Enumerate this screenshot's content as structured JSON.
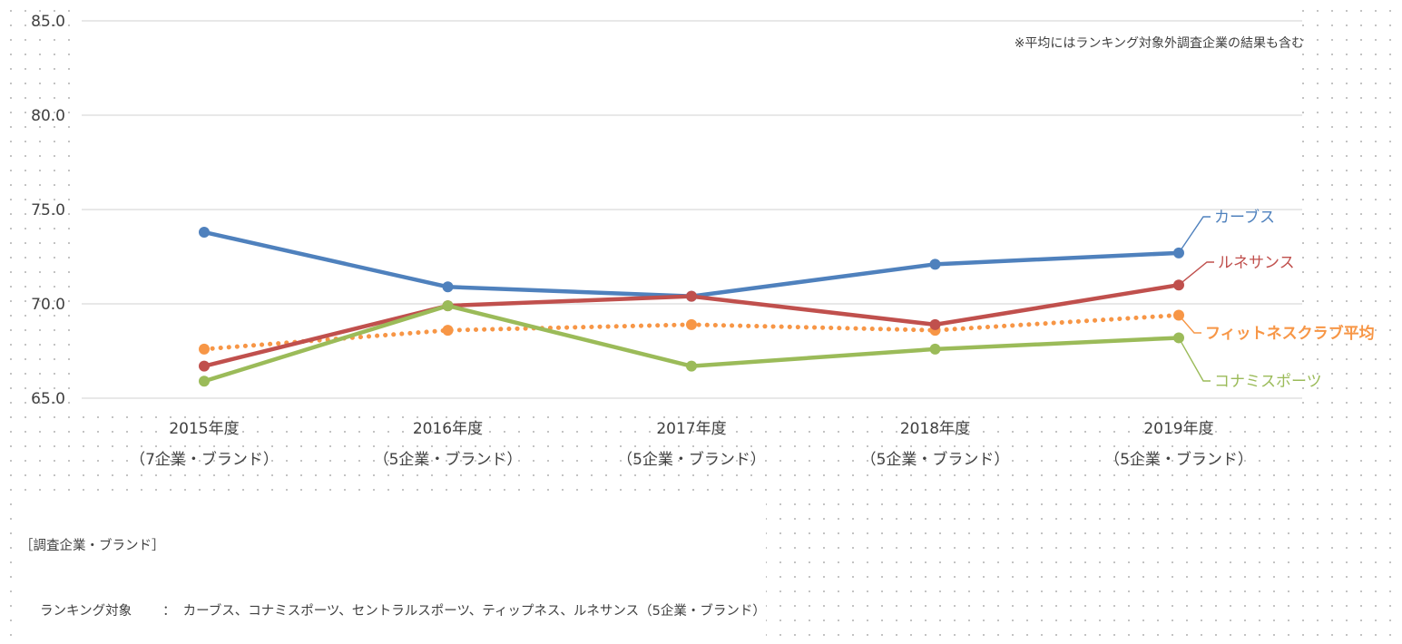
{
  "chart_data": {
    "type": "line",
    "categories": [
      [
        "2015年度",
        "（7企業・ブランド）"
      ],
      [
        "2016年度",
        "（5企業・ブランド）"
      ],
      [
        "2017年度",
        "（5企業・ブランド）"
      ],
      [
        "2018年度",
        "（5企業・ブランド）"
      ],
      [
        "2019年度",
        "（5企業・ブランド）"
      ]
    ],
    "ylim": [
      65,
      85
    ],
    "yticks": [
      65,
      70,
      75,
      80,
      85
    ],
    "ytick_labels": [
      "65.0",
      "70.0",
      "75.0",
      "80.0",
      "85.0"
    ],
    "grid": true,
    "note": "※平均にはランキング対象外調査企業の結果も含む",
    "series": [
      {
        "name": "カーブス",
        "values": [
          73.8,
          70.9,
          70.4,
          72.1,
          72.7
        ],
        "color": "#4f81bd",
        "style": "solid"
      },
      {
        "name": "ルネサンス",
        "values": [
          66.7,
          69.9,
          70.4,
          68.9,
          71.0
        ],
        "color": "#c0504d",
        "style": "solid"
      },
      {
        "name": "フィットネスクラブ平均",
        "values": [
          67.6,
          68.6,
          68.9,
          68.6,
          69.4
        ],
        "color": "#f79646",
        "style": "dotted"
      },
      {
        "name": "コナミスポーツ",
        "values": [
          65.9,
          69.9,
          66.7,
          67.6,
          68.2
        ],
        "color": "#9bbb59",
        "style": "solid"
      }
    ]
  },
  "legend": {
    "heading": "［調査企業・ブランド］",
    "row_label": "ランキング対象",
    "row_sep": "：",
    "row_value": "カーブス、コナミスポーツ、セントラルスポーツ、ティップネス、ルネサンス（5企業・ブランド）"
  }
}
